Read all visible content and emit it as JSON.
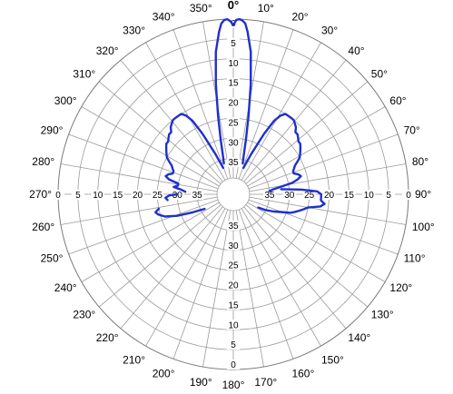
{
  "chart_data": {
    "type": "polar-line",
    "title": "",
    "grid": true,
    "angle_unit": "degrees",
    "angle_direction": "clockwise",
    "zero_angle": "top",
    "angle_ticks": [
      0,
      10,
      20,
      30,
      40,
      50,
      60,
      70,
      80,
      90,
      100,
      110,
      120,
      130,
      140,
      150,
      160,
      170,
      180,
      190,
      200,
      210,
      220,
      230,
      240,
      250,
      260,
      270,
      280,
      290,
      300,
      310,
      320,
      330,
      340,
      350
    ],
    "angle_tick_labels": [
      "0°",
      "10°",
      "20°",
      "30°",
      "40°",
      "50°",
      "60°",
      "70°",
      "80°",
      "90°",
      "100°",
      "110°",
      "120°",
      "130°",
      "140°",
      "150°",
      "160°",
      "170°",
      "180°",
      "190°",
      "200°",
      "210°",
      "220°",
      "230°",
      "240°",
      "250°",
      "260°",
      "270°",
      "280°",
      "290°",
      "300°",
      "310°",
      "320°",
      "330°",
      "340°",
      "350°"
    ],
    "radial_axis": {
      "ticks": [
        0,
        5,
        10,
        15,
        20,
        25,
        30,
        35
      ],
      "tick_labels": [
        "0",
        "5",
        "10",
        "15",
        "20",
        "25",
        "30",
        "35"
      ],
      "outer_value": 0,
      "inner_value": 40,
      "reversed": true
    },
    "series": [
      {
        "color": "#1f2fd0",
        "segments": [
          {
            "points": [
              [
                -17,
                36
              ],
              [
                -15,
                34
              ],
              [
                -13,
                30
              ],
              [
                -11,
                24
              ],
              [
                -9,
                16
              ],
              [
                -7,
                8
              ],
              [
                -5,
                3
              ],
              [
                -4,
                1
              ],
              [
                -3,
                0.2
              ],
              [
                -2,
                0
              ],
              [
                -1,
                0.5
              ],
              [
                0,
                1.5
              ],
              [
                1,
                0.2
              ],
              [
                2,
                0
              ],
              [
                3,
                0.3
              ],
              [
                4,
                1
              ],
              [
                5,
                3
              ],
              [
                7,
                8
              ],
              [
                9,
                16
              ],
              [
                11,
                24
              ],
              [
                13,
                30
              ],
              [
                15,
                34
              ],
              [
                17,
                36
              ]
            ]
          },
          {
            "points": [
              [
                21,
                37
              ],
              [
                24,
                33
              ],
              [
                27,
                27
              ],
              [
                29,
                23
              ],
              [
                31,
                21
              ],
              [
                33,
                20
              ],
              [
                35,
                20
              ],
              [
                37,
                20
              ],
              [
                39,
                20
              ],
              [
                41,
                20.5
              ],
              [
                43,
                21
              ],
              [
                45,
                22
              ],
              [
                47,
                22
              ],
              [
                49,
                22.5
              ],
              [
                51,
                23
              ],
              [
                53,
                23
              ],
              [
                55,
                23.5
              ],
              [
                57,
                24
              ],
              [
                59,
                24.5
              ],
              [
                61,
                25
              ],
              [
                63,
                26
              ],
              [
                65,
                27
              ],
              [
                67,
                27.5
              ],
              [
                69,
                28
              ],
              [
                71,
                28
              ],
              [
                73,
                27
              ],
              [
                75,
                26.5
              ],
              [
                77,
                27.5
              ],
              [
                79,
                29
              ],
              [
                81,
                32
              ],
              [
                83,
                34
              ],
              [
                85,
                35
              ]
            ]
          },
          {
            "points": [
              [
                84,
                32
              ],
              [
                86,
                27
              ],
              [
                88,
                23
              ],
              [
                90,
                22
              ],
              [
                92,
                22
              ],
              [
                94,
                22
              ],
              [
                96,
                21
              ],
              [
                98,
                22
              ],
              [
                100,
                25
              ],
              [
                102,
                26
              ],
              [
                104,
                27
              ],
              [
                106,
                28
              ],
              [
                108,
                29
              ],
              [
                110,
                31
              ],
              [
                113,
                33
              ],
              [
                116,
                35
              ],
              [
                118,
                37
              ]
            ]
          },
          {
            "points": [
              [
                -21,
                37
              ],
              [
                -24,
                33
              ],
              [
                -27,
                27
              ],
              [
                -29,
                23
              ],
              [
                -31,
                21
              ],
              [
                -33,
                20
              ],
              [
                -35,
                20
              ],
              [
                -37,
                20
              ],
              [
                -39,
                20
              ],
              [
                -41,
                20.5
              ],
              [
                -43,
                21
              ],
              [
                -45,
                22
              ],
              [
                -47,
                22
              ],
              [
                -49,
                22.5
              ],
              [
                -51,
                23
              ],
              [
                -53,
                23
              ],
              [
                -55,
                23.5
              ],
              [
                -57,
                24
              ],
              [
                -59,
                24.5
              ],
              [
                -61,
                25
              ],
              [
                -63,
                26
              ],
              [
                -65,
                27
              ],
              [
                -67,
                27.5
              ],
              [
                -69,
                28
              ],
              [
                -71,
                28
              ],
              [
                -73,
                27
              ],
              [
                -75,
                26.5
              ],
              [
                -77,
                27.5
              ],
              [
                -79,
                30
              ],
              [
                -81,
                30
              ],
              [
                -83,
                29
              ],
              [
                -85,
                31
              ],
              [
                -87,
                32
              ]
            ]
          },
          {
            "points": [
              [
                -90,
                30
              ],
              [
                -91,
                28
              ],
              [
                -93,
                27
              ],
              [
                -95,
                27.5
              ]
            ]
          },
          {
            "points": [
              [
                -101,
                25
              ],
              [
                -103,
                24
              ],
              [
                -105,
                24.5
              ],
              [
                -108,
                26
              ],
              [
                -111,
                29
              ],
              [
                -114,
                33
              ],
              [
                -117,
                36
              ]
            ]
          }
        ]
      }
    ]
  }
}
